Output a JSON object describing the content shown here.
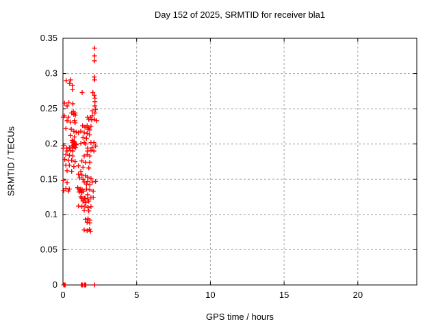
{
  "title": "Day 152 of 2025, SRMTID for receiver bla1",
  "axes": {
    "xlabel": "GPS time / hours",
    "ylabel": "SRMTID / TECUs",
    "x_ticks": [
      {
        "v": 0,
        "label": "0"
      },
      {
        "v": 5,
        "label": "5"
      },
      {
        "v": 10,
        "label": "10"
      },
      {
        "v": 15,
        "label": "15"
      },
      {
        "v": 20,
        "label": "20"
      }
    ],
    "y_ticks": [
      {
        "v": 0,
        "label": "0"
      },
      {
        "v": 0.05,
        "label": "0.05"
      },
      {
        "v": 0.1,
        "label": "0.1"
      },
      {
        "v": 0.15,
        "label": "0.15"
      },
      {
        "v": 0.2,
        "label": "0.2"
      },
      {
        "v": 0.25,
        "label": "0.25"
      },
      {
        "v": 0.3,
        "label": "0.3"
      },
      {
        "v": 0.35,
        "label": "0.35"
      }
    ]
  },
  "style": {
    "marker_color": "#ff0000",
    "grid_color": "#a0a0a0",
    "border_color": "#000000"
  },
  "chart_data": {
    "type": "scatter",
    "title": "Day 152 of 2025, SRMTID for receiver bla1",
    "xlabel": "GPS time / hours",
    "ylabel": "SRMTID / TECUs",
    "xlim": [
      0,
      24
    ],
    "ylim": [
      0,
      0.35
    ],
    "grid": "dashed, at major ticks",
    "legend": "none",
    "marker": "plus",
    "series_name": "SRMTID",
    "points": [
      [
        2.14,
        0.336
      ],
      [
        2.14,
        0.325
      ],
      [
        2.14,
        0.318
      ],
      [
        2.12,
        0.295
      ],
      [
        2.15,
        0.291
      ],
      [
        0.22,
        0.29
      ],
      [
        0.52,
        0.291
      ],
      [
        0.45,
        0.286
      ],
      [
        0.64,
        0.283
      ],
      [
        0.64,
        0.277
      ],
      [
        1.3,
        0.273
      ],
      [
        2.03,
        0.273
      ],
      [
        2.12,
        0.269
      ],
      [
        2.17,
        0.265
      ],
      [
        2.17,
        0.26
      ],
      [
        0.1,
        0.258
      ],
      [
        0.4,
        0.259
      ],
      [
        0.67,
        0.257
      ],
      [
        2.17,
        0.254
      ],
      [
        0.28,
        0.254
      ],
      [
        0.7,
        0.246
      ],
      [
        0.82,
        0.244
      ],
      [
        0.59,
        0.244
      ],
      [
        0.74,
        0.242
      ],
      [
        0.84,
        0.241
      ],
      [
        1.98,
        0.247
      ],
      [
        2.21,
        0.249
      ],
      [
        2.17,
        0.244
      ],
      [
        0.09,
        0.24
      ],
      [
        0.02,
        0.238
      ],
      [
        0.36,
        0.238
      ],
      [
        1.67,
        0.238
      ],
      [
        1.86,
        0.238
      ],
      [
        1.98,
        0.24
      ],
      [
        0.28,
        0.233
      ],
      [
        0.51,
        0.231
      ],
      [
        0.78,
        0.233
      ],
      [
        0.82,
        0.23
      ],
      [
        1.75,
        0.235
      ],
      [
        1.95,
        0.234
      ],
      [
        2.14,
        0.235
      ],
      [
        2.29,
        0.233
      ],
      [
        1.33,
        0.226
      ],
      [
        1.49,
        0.224
      ],
      [
        1.64,
        0.226
      ],
      [
        1.75,
        0.223
      ],
      [
        1.9,
        0.225
      ],
      [
        1.7,
        0.221
      ],
      [
        1.82,
        0.22
      ],
      [
        0.56,
        0.221
      ],
      [
        0.2,
        0.222
      ],
      [
        0.74,
        0.218
      ],
      [
        0.9,
        0.217
      ],
      [
        1.05,
        0.216
      ],
      [
        1.21,
        0.218
      ],
      [
        1.44,
        0.216
      ],
      [
        1.64,
        0.215
      ],
      [
        1.8,
        0.213
      ],
      [
        0.51,
        0.212
      ],
      [
        0.78,
        0.21
      ],
      [
        1.36,
        0.209
      ],
      [
        1.59,
        0.208
      ],
      [
        0.62,
        0.205
      ],
      [
        0.7,
        0.204
      ],
      [
        0.78,
        0.203
      ],
      [
        0.66,
        0.202
      ],
      [
        0.74,
        0.2
      ],
      [
        0.82,
        0.201
      ],
      [
        0.9,
        0.199
      ],
      [
        0.7,
        0.198
      ],
      [
        0.62,
        0.197
      ],
      [
        0.78,
        0.196
      ],
      [
        0.86,
        0.195
      ],
      [
        0.66,
        0.194
      ],
      [
        1.21,
        0.201
      ],
      [
        1.44,
        0.202
      ],
      [
        1.54,
        0.2
      ],
      [
        1.9,
        0.202
      ],
      [
        2.1,
        0.202
      ],
      [
        1.67,
        0.194
      ],
      [
        1.98,
        0.195
      ],
      [
        2.21,
        0.197
      ],
      [
        0.05,
        0.198
      ],
      [
        0.02,
        0.194
      ],
      [
        0.25,
        0.194
      ],
      [
        0.43,
        0.195
      ],
      [
        0.28,
        0.19
      ],
      [
        0.51,
        0.191
      ],
      [
        0.67,
        0.19
      ],
      [
        1.67,
        0.19
      ],
      [
        1.9,
        0.191
      ],
      [
        2.1,
        0.19
      ],
      [
        0.2,
        0.185
      ],
      [
        0.43,
        0.184
      ],
      [
        0.67,
        0.183
      ],
      [
        1.44,
        0.183
      ],
      [
        1.64,
        0.185
      ],
      [
        1.82,
        0.183
      ],
      [
        0.12,
        0.178
      ],
      [
        0.36,
        0.177
      ],
      [
        0.59,
        0.177
      ],
      [
        0.82,
        0.175
      ],
      [
        1.28,
        0.176
      ],
      [
        1.52,
        0.174
      ],
      [
        1.82,
        0.174
      ],
      [
        0.2,
        0.17
      ],
      [
        0.43,
        0.17
      ],
      [
        0.74,
        0.168
      ],
      [
        1.05,
        0.169
      ],
      [
        1.36,
        0.167
      ],
      [
        1.75,
        0.166
      ],
      [
        0.28,
        0.162
      ],
      [
        0.59,
        0.161
      ],
      [
        1.21,
        0.161
      ],
      [
        1.05,
        0.157
      ],
      [
        1.28,
        0.156
      ],
      [
        1.52,
        0.155
      ],
      [
        1.67,
        0.153
      ],
      [
        1.13,
        0.152
      ],
      [
        1.36,
        0.15
      ],
      [
        1.9,
        0.151
      ],
      [
        0.02,
        0.148
      ],
      [
        0.28,
        0.145
      ],
      [
        1.44,
        0.146
      ],
      [
        1.67,
        0.147
      ],
      [
        1.98,
        0.146
      ],
      [
        2.21,
        0.147
      ],
      [
        1.59,
        0.143
      ],
      [
        1.82,
        0.142
      ],
      [
        0.2,
        0.137
      ],
      [
        0.43,
        0.136
      ],
      [
        0.05,
        0.134
      ],
      [
        0.36,
        0.133
      ],
      [
        1.0,
        0.138
      ],
      [
        1.08,
        0.136
      ],
      [
        1.16,
        0.134
      ],
      [
        1.24,
        0.133
      ],
      [
        1.1,
        0.132
      ],
      [
        1.2,
        0.136
      ],
      [
        1.3,
        0.135
      ],
      [
        1.4,
        0.133
      ],
      [
        1.28,
        0.131
      ],
      [
        1.59,
        0.136
      ],
      [
        1.82,
        0.135
      ],
      [
        2.05,
        0.133
      ],
      [
        1.67,
        0.128
      ],
      [
        1.21,
        0.125
      ],
      [
        1.44,
        0.123
      ],
      [
        1.9,
        0.124
      ],
      [
        1.36,
        0.12
      ],
      [
        1.28,
        0.123
      ],
      [
        1.5,
        0.123
      ],
      [
        1.69,
        0.122
      ],
      [
        2.05,
        0.124
      ],
      [
        1.36,
        0.118
      ],
      [
        1.55,
        0.117
      ],
      [
        1.75,
        0.119
      ],
      [
        1.05,
        0.112
      ],
      [
        1.28,
        0.111
      ],
      [
        1.49,
        0.112
      ],
      [
        1.7,
        0.11
      ],
      [
        1.9,
        0.111
      ],
      [
        1.44,
        0.106
      ],
      [
        1.75,
        0.105
      ],
      [
        1.52,
        0.093
      ],
      [
        1.7,
        0.094
      ],
      [
        1.82,
        0.092
      ],
      [
        1.64,
        0.089
      ],
      [
        1.82,
        0.088
      ],
      [
        1.44,
        0.078
      ],
      [
        1.64,
        0.077
      ],
      [
        1.8,
        0.079
      ],
      [
        1.86,
        0.076
      ],
      [
        0.05,
        0
      ],
      [
        0.08,
        0
      ],
      [
        0.12,
        0
      ],
      [
        0.15,
        0
      ],
      [
        1.25,
        0
      ],
      [
        1.28,
        0
      ],
      [
        1.32,
        0
      ],
      [
        1.45,
        0
      ],
      [
        1.5,
        0
      ],
      [
        1.55,
        0
      ],
      [
        2.15,
        0
      ]
    ]
  }
}
